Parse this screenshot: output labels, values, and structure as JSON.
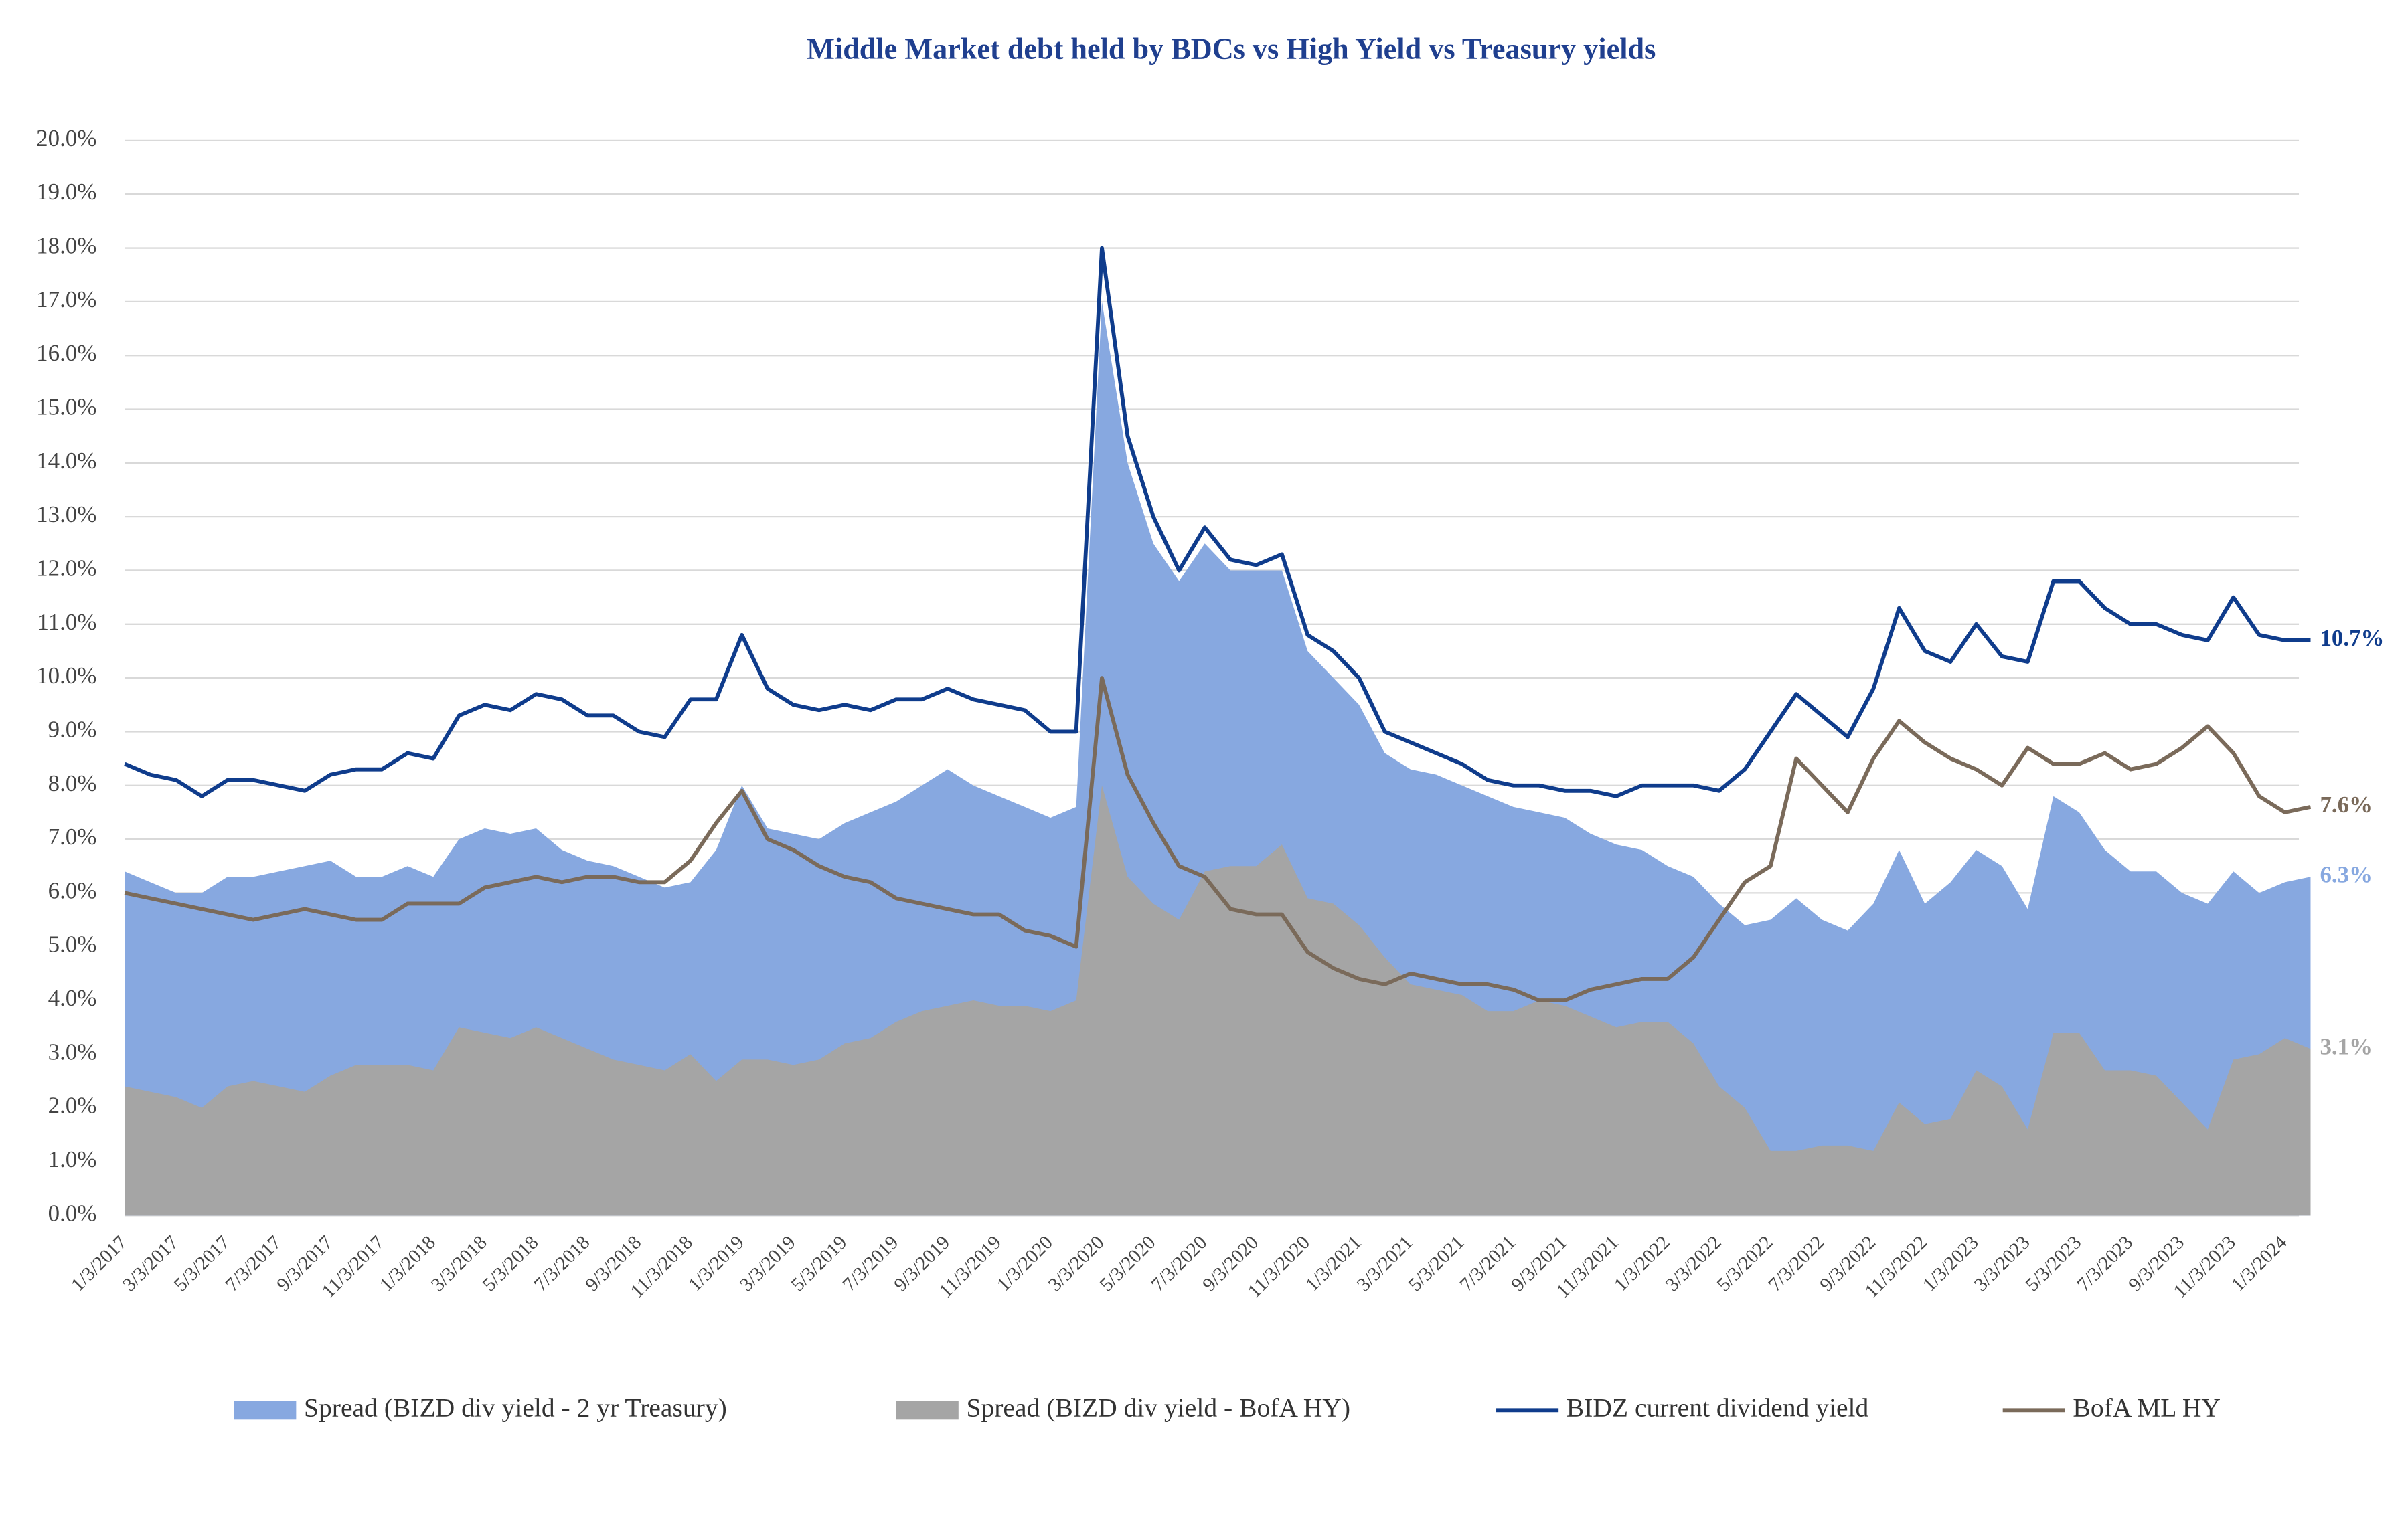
{
  "chart_data": {
    "type": "line",
    "title": "Middle Market debt held by BDCs vs High Yield vs Treasury yields",
    "categories": [
      "1/3/2017",
      null,
      "3/3/2017",
      null,
      "5/3/2017",
      null,
      "7/3/2017",
      null,
      "9/3/2017",
      null,
      "11/3/2017",
      null,
      "1/3/2018",
      null,
      "3/3/2018",
      null,
      "5/3/2018",
      null,
      "7/3/2018",
      null,
      "9/3/2018",
      null,
      "11/3/2018",
      null,
      "1/3/2019",
      null,
      "3/3/2019",
      null,
      "5/3/2019",
      null,
      "7/3/2019",
      null,
      "9/3/2019",
      null,
      "11/3/2019",
      null,
      "1/3/2020",
      null,
      "3/3/2020",
      null,
      "5/3/2020",
      null,
      "7/3/2020",
      null,
      "9/3/2020",
      null,
      "11/3/2020",
      null,
      "1/3/2021",
      null,
      "3/3/2021",
      null,
      "5/3/2021",
      null,
      "7/3/2021",
      null,
      "9/3/2021",
      null,
      "11/3/2021",
      null,
      "1/3/2022",
      null,
      "3/3/2022",
      null,
      "5/3/2022",
      null,
      "7/3/2022",
      null,
      "9/3/2022",
      null,
      "11/3/2022",
      null,
      "1/3/2023",
      null,
      "3/3/2023",
      null,
      "5/3/2023",
      null,
      "7/3/2023",
      null,
      "9/3/2023",
      null,
      "11/3/2023",
      null,
      "1/3/2024",
      null
    ],
    "series": [
      {
        "name": "Spread (BIZD div yield - 2 yr Treasury)",
        "kind": "area",
        "color": "#87a8e0",
        "values": [
          6.4,
          6.2,
          6.0,
          6.0,
          6.3,
          6.3,
          6.4,
          6.5,
          6.6,
          6.3,
          6.3,
          6.5,
          6.3,
          7.0,
          7.2,
          7.1,
          7.2,
          6.8,
          6.6,
          6.5,
          6.3,
          6.1,
          6.2,
          6.8,
          8.0,
          7.2,
          7.1,
          7.0,
          7.3,
          7.5,
          7.7,
          8.0,
          8.3,
          8.0,
          7.8,
          7.6,
          7.4,
          7.6,
          17.0,
          14.0,
          12.5,
          11.8,
          12.5,
          12.0,
          12.0,
          12.0,
          10.5,
          10.0,
          9.5,
          8.6,
          8.3,
          8.2,
          8.0,
          7.8,
          7.6,
          7.5,
          7.4,
          7.1,
          6.9,
          6.8,
          6.5,
          6.3,
          5.8,
          5.4,
          5.5,
          5.9,
          5.5,
          5.3,
          5.8,
          6.8,
          5.8,
          6.2,
          6.8,
          6.5,
          5.7,
          7.8,
          7.5,
          6.8,
          6.4,
          6.4,
          6.0,
          5.8,
          6.4,
          6.0,
          6.2,
          6.3
        ],
        "value_labels": [
          null,
          null,
          null,
          null,
          null,
          null,
          null,
          null,
          null,
          null,
          null,
          null,
          null,
          null,
          null,
          null,
          null,
          null,
          null,
          null,
          null,
          null,
          null,
          null,
          null,
          null,
          null,
          null,
          null,
          null,
          null,
          null,
          null,
          null,
          null,
          null,
          null,
          null,
          null,
          null,
          null,
          null,
          null,
          null,
          null,
          null,
          null,
          null,
          null,
          null,
          null,
          null,
          null,
          null,
          null,
          null,
          null,
          null,
          null,
          null,
          null,
          null,
          null,
          null,
          null,
          null,
          null,
          null,
          null,
          null,
          null,
          null,
          null,
          null,
          null,
          null,
          null,
          null,
          null,
          null,
          null,
          null,
          null,
          null,
          null,
          "6.3%"
        ]
      },
      {
        "name": "Spread (BIZD div yield - BofA HY)",
        "kind": "area",
        "color": "#a5a5a5",
        "values": [
          2.4,
          2.3,
          2.2,
          2.0,
          2.4,
          2.5,
          2.4,
          2.3,
          2.6,
          2.8,
          2.8,
          2.8,
          2.7,
          3.5,
          3.4,
          3.3,
          3.5,
          3.3,
          3.1,
          2.9,
          2.8,
          2.7,
          3.0,
          2.5,
          2.9,
          2.9,
          2.8,
          2.9,
          3.2,
          3.3,
          3.6,
          3.8,
          3.9,
          4.0,
          3.9,
          3.9,
          3.8,
          4.0,
          8.0,
          6.3,
          5.8,
          5.5,
          6.4,
          6.5,
          6.5,
          6.9,
          5.9,
          5.8,
          5.4,
          4.8,
          4.3,
          4.2,
          4.1,
          3.8,
          3.8,
          4.0,
          3.9,
          3.7,
          3.5,
          3.6,
          3.6,
          3.2,
          2.4,
          2.0,
          1.2,
          1.2,
          1.3,
          1.3,
          1.2,
          2.1,
          1.7,
          1.8,
          2.7,
          2.4,
          1.6,
          3.4,
          3.4,
          2.7,
          2.7,
          2.6,
          2.1,
          1.6,
          2.9,
          3.0,
          3.3,
          3.1
        ],
        "value_labels": [
          null,
          null,
          null,
          null,
          null,
          null,
          null,
          null,
          null,
          null,
          null,
          null,
          null,
          null,
          null,
          null,
          null,
          null,
          null,
          null,
          null,
          null,
          null,
          null,
          null,
          null,
          null,
          null,
          null,
          null,
          null,
          null,
          null,
          null,
          null,
          null,
          null,
          null,
          null,
          null,
          null,
          null,
          null,
          null,
          null,
          null,
          null,
          null,
          null,
          null,
          null,
          null,
          null,
          null,
          null,
          null,
          null,
          null,
          null,
          null,
          null,
          null,
          null,
          null,
          null,
          null,
          null,
          null,
          null,
          null,
          null,
          null,
          null,
          null,
          null,
          null,
          null,
          null,
          null,
          null,
          null,
          null,
          null,
          null,
          null,
          "3.1%"
        ]
      },
      {
        "name": "BIDZ current dividend yield",
        "kind": "line",
        "color": "#0f3c8c",
        "values": [
          8.4,
          8.2,
          8.1,
          7.8,
          8.1,
          8.1,
          8.0,
          7.9,
          8.2,
          8.3,
          8.3,
          8.6,
          8.5,
          9.3,
          9.5,
          9.4,
          9.7,
          9.6,
          9.3,
          9.3,
          9.0,
          8.9,
          9.6,
          9.6,
          10.8,
          9.8,
          9.5,
          9.4,
          9.5,
          9.4,
          9.6,
          9.6,
          9.8,
          9.6,
          9.5,
          9.4,
          9.0,
          9.0,
          18.0,
          14.5,
          13.0,
          12.0,
          12.8,
          12.2,
          12.1,
          12.3,
          10.8,
          10.5,
          10.0,
          9.0,
          8.8,
          8.6,
          8.4,
          8.1,
          8.0,
          8.0,
          7.9,
          7.9,
          7.8,
          8.0,
          8.0,
          8.0,
          7.9,
          8.3,
          9.0,
          9.7,
          9.3,
          8.9,
          9.8,
          11.3,
          10.5,
          10.3,
          11.0,
          10.4,
          10.3,
          11.8,
          11.8,
          11.3,
          11.0,
          11.0,
          10.8,
          10.7,
          11.5,
          10.8,
          10.7,
          10.7
        ],
        "value_labels": [
          null,
          null,
          null,
          null,
          null,
          null,
          null,
          null,
          null,
          null,
          null,
          null,
          null,
          null,
          null,
          null,
          null,
          null,
          null,
          null,
          null,
          null,
          null,
          null,
          null,
          null,
          null,
          null,
          null,
          null,
          null,
          null,
          null,
          null,
          null,
          null,
          null,
          null,
          null,
          null,
          null,
          null,
          null,
          null,
          null,
          null,
          null,
          null,
          null,
          null,
          null,
          null,
          null,
          null,
          null,
          null,
          null,
          null,
          null,
          null,
          null,
          null,
          null,
          null,
          null,
          null,
          null,
          null,
          null,
          null,
          null,
          null,
          null,
          null,
          null,
          null,
          null,
          null,
          null,
          null,
          null,
          null,
          null,
          null,
          null,
          "10.7%"
        ]
      },
      {
        "name": "BofA ML HY",
        "kind": "line",
        "color": "#7a6a5a",
        "values": [
          6.0,
          5.9,
          5.8,
          5.7,
          5.6,
          5.5,
          5.6,
          5.7,
          5.6,
          5.5,
          5.5,
          5.8,
          5.8,
          5.8,
          6.1,
          6.2,
          6.3,
          6.2,
          6.3,
          6.3,
          6.2,
          6.2,
          6.6,
          7.3,
          7.9,
          7.0,
          6.8,
          6.5,
          6.3,
          6.2,
          5.9,
          5.8,
          5.7,
          5.6,
          5.6,
          5.3,
          5.2,
          5.0,
          10.0,
          8.2,
          7.3,
          6.5,
          6.3,
          5.7,
          5.6,
          5.6,
          4.9,
          4.6,
          4.4,
          4.3,
          4.5,
          4.4,
          4.3,
          4.3,
          4.2,
          4.0,
          4.0,
          4.2,
          4.3,
          4.4,
          4.4,
          4.8,
          5.5,
          6.2,
          6.5,
          8.5,
          8.0,
          7.5,
          8.5,
          9.2,
          8.8,
          8.5,
          8.3,
          8.0,
          8.7,
          8.4,
          8.4,
          8.6,
          8.3,
          8.4,
          8.7,
          9.1,
          8.6,
          7.8,
          7.5,
          7.6
        ],
        "value_labels": [
          null,
          null,
          null,
          null,
          null,
          null,
          null,
          null,
          null,
          null,
          null,
          null,
          null,
          null,
          null,
          null,
          null,
          null,
          null,
          null,
          null,
          null,
          null,
          null,
          null,
          null,
          null,
          null,
          null,
          null,
          null,
          null,
          null,
          null,
          null,
          null,
          null,
          null,
          null,
          null,
          null,
          null,
          null,
          null,
          null,
          null,
          null,
          null,
          null,
          null,
          null,
          null,
          null,
          null,
          null,
          null,
          null,
          null,
          null,
          null,
          null,
          null,
          null,
          null,
          null,
          null,
          null,
          null,
          null,
          null,
          null,
          null,
          null,
          null,
          null,
          null,
          null,
          null,
          null,
          null,
          null,
          null,
          null,
          null,
          null,
          "7.6%"
        ]
      }
    ],
    "ylim": [
      0,
      20
    ],
    "yticks": [
      {
        "value": 0,
        "label": "0.0%"
      },
      {
        "value": 1,
        "label": "1.0%"
      },
      {
        "value": 2,
        "label": "2.0%"
      },
      {
        "value": 3,
        "label": "3.0%"
      },
      {
        "value": 4,
        "label": "4.0%"
      },
      {
        "value": 5,
        "label": "5.0%"
      },
      {
        "value": 6,
        "label": "6.0%"
      },
      {
        "value": 7,
        "label": "7.0%"
      },
      {
        "value": 8,
        "label": "8.0%"
      },
      {
        "value": 9,
        "label": "9.0%"
      },
      {
        "value": 10,
        "label": "10.0%"
      },
      {
        "value": 11,
        "label": "11.0%"
      },
      {
        "value": 12,
        "label": "12.0%"
      },
      {
        "value": 13,
        "label": "13.0%"
      },
      {
        "value": 14,
        "label": "14.0%"
      },
      {
        "value": 15,
        "label": "15.0%"
      },
      {
        "value": 16,
        "label": "16.0%"
      },
      {
        "value": 17,
        "label": "17.0%"
      },
      {
        "value": 18,
        "label": "18.0%"
      },
      {
        "value": 19,
        "label": "19.0%"
      },
      {
        "value": 20,
        "label": "20.0%"
      }
    ],
    "grid": true,
    "legend": "bottom"
  }
}
